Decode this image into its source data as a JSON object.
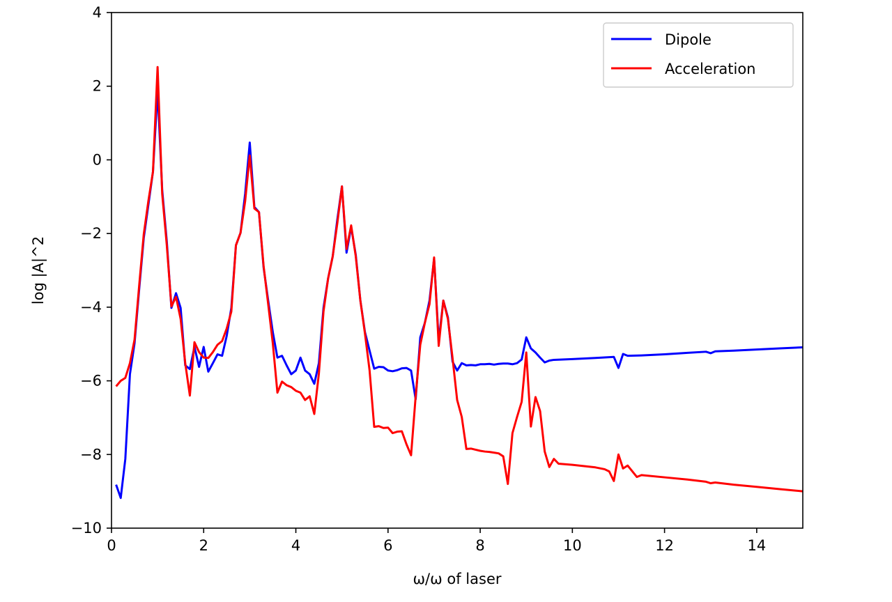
{
  "chart_data": {
    "type": "line",
    "title": "",
    "xlabel": "ω/ω of laser",
    "ylabel": "log |A|^2",
    "xlim": [
      0,
      15
    ],
    "ylim": [
      -10,
      4
    ],
    "xticks": [
      0,
      2,
      4,
      6,
      8,
      10,
      12,
      14
    ],
    "yticks": [
      -10,
      -8,
      -6,
      -4,
      -2,
      0,
      2,
      4
    ],
    "grid": false,
    "legend_position": "top-right",
    "series": [
      {
        "name": "Dipole",
        "color": "#0000ff",
        "points": [
          [
            0.1,
            -8.82
          ],
          [
            0.2,
            -9.18
          ],
          [
            0.3,
            -8.12
          ],
          [
            0.4,
            -5.82
          ],
          [
            0.5,
            -4.98
          ],
          [
            0.6,
            -3.52
          ],
          [
            0.7,
            -2.12
          ],
          [
            0.8,
            -1.22
          ],
          [
            0.9,
            -0.32
          ],
          [
            1.0,
            1.9
          ],
          [
            1.1,
            -0.82
          ],
          [
            1.2,
            -2.22
          ],
          [
            1.3,
            -4.02
          ],
          [
            1.4,
            -3.62
          ],
          [
            1.5,
            -4.02
          ],
          [
            1.6,
            -5.58
          ],
          [
            1.7,
            -5.68
          ],
          [
            1.8,
            -5.08
          ],
          [
            1.9,
            -5.62
          ],
          [
            2.0,
            -5.08
          ],
          [
            2.1,
            -5.75
          ],
          [
            2.2,
            -5.52
          ],
          [
            2.3,
            -5.28
          ],
          [
            2.4,
            -5.32
          ],
          [
            2.5,
            -4.78
          ],
          [
            2.6,
            -4.02
          ],
          [
            2.7,
            -2.32
          ],
          [
            2.8,
            -1.98
          ],
          [
            2.9,
            -0.92
          ],
          [
            3.0,
            0.47
          ],
          [
            3.1,
            -1.28
          ],
          [
            3.2,
            -1.42
          ],
          [
            3.3,
            -2.92
          ],
          [
            3.4,
            -3.82
          ],
          [
            3.5,
            -4.68
          ],
          [
            3.6,
            -5.37
          ],
          [
            3.7,
            -5.32
          ],
          [
            3.8,
            -5.58
          ],
          [
            3.9,
            -5.82
          ],
          [
            4.0,
            -5.72
          ],
          [
            4.1,
            -5.37
          ],
          [
            4.2,
            -5.72
          ],
          [
            4.3,
            -5.82
          ],
          [
            4.4,
            -6.08
          ],
          [
            4.5,
            -5.52
          ],
          [
            4.6,
            -4.02
          ],
          [
            4.7,
            -3.22
          ],
          [
            4.8,
            -2.62
          ],
          [
            4.9,
            -1.62
          ],
          [
            5.0,
            -0.72
          ],
          [
            5.1,
            -2.52
          ],
          [
            5.2,
            -1.82
          ],
          [
            5.3,
            -2.58
          ],
          [
            5.4,
            -3.82
          ],
          [
            5.5,
            -4.68
          ],
          [
            5.6,
            -5.18
          ],
          [
            5.7,
            -5.67
          ],
          [
            5.8,
            -5.62
          ],
          [
            5.9,
            -5.63
          ],
          [
            6.0,
            -5.72
          ],
          [
            6.1,
            -5.74
          ],
          [
            6.2,
            -5.71
          ],
          [
            6.3,
            -5.66
          ],
          [
            6.4,
            -5.65
          ],
          [
            6.5,
            -5.72
          ],
          [
            6.6,
            -6.5
          ],
          [
            6.7,
            -4.82
          ],
          [
            6.8,
            -4.42
          ],
          [
            6.9,
            -3.82
          ],
          [
            7.0,
            -2.68
          ],
          [
            7.1,
            -4.92
          ],
          [
            7.2,
            -3.82
          ],
          [
            7.3,
            -4.28
          ],
          [
            7.4,
            -5.48
          ],
          [
            7.5,
            -5.72
          ],
          [
            7.6,
            -5.52
          ],
          [
            7.7,
            -5.58
          ],
          [
            7.8,
            -5.57
          ],
          [
            7.9,
            -5.58
          ],
          [
            8.0,
            -5.55
          ],
          [
            8.1,
            -5.55
          ],
          [
            8.2,
            -5.54
          ],
          [
            8.3,
            -5.56
          ],
          [
            8.4,
            -5.54
          ],
          [
            8.5,
            -5.53
          ],
          [
            8.6,
            -5.53
          ],
          [
            8.7,
            -5.55
          ],
          [
            8.8,
            -5.52
          ],
          [
            8.9,
            -5.42
          ],
          [
            9.0,
            -4.82
          ],
          [
            9.1,
            -5.12
          ],
          [
            9.2,
            -5.23
          ],
          [
            9.3,
            -5.37
          ],
          [
            9.4,
            -5.5
          ],
          [
            9.5,
            -5.45
          ],
          [
            9.6,
            -5.43
          ],
          [
            10.0,
            -5.41
          ],
          [
            10.5,
            -5.38
          ],
          [
            10.9,
            -5.35
          ],
          [
            11.0,
            -5.65
          ],
          [
            11.1,
            -5.27
          ],
          [
            11.2,
            -5.32
          ],
          [
            11.5,
            -5.31
          ],
          [
            12.0,
            -5.28
          ],
          [
            12.5,
            -5.24
          ],
          [
            12.9,
            -5.21
          ],
          [
            13.0,
            -5.25
          ],
          [
            13.1,
            -5.2
          ],
          [
            13.5,
            -5.18
          ],
          [
            14.0,
            -5.15
          ],
          [
            14.5,
            -5.12
          ],
          [
            15.0,
            -5.09
          ]
        ]
      },
      {
        "name": "Acceleration",
        "color": "#ff0000",
        "points": [
          [
            0.1,
            -6.15
          ],
          [
            0.2,
            -6.0
          ],
          [
            0.3,
            -5.92
          ],
          [
            0.4,
            -5.52
          ],
          [
            0.5,
            -4.88
          ],
          [
            0.6,
            -3.42
          ],
          [
            0.7,
            -2.02
          ],
          [
            0.8,
            -1.12
          ],
          [
            0.9,
            -0.32
          ],
          [
            1.0,
            2.52
          ],
          [
            1.1,
            -0.92
          ],
          [
            1.2,
            -2.32
          ],
          [
            1.3,
            -3.98
          ],
          [
            1.4,
            -3.72
          ],
          [
            1.5,
            -4.32
          ],
          [
            1.6,
            -5.52
          ],
          [
            1.7,
            -6.4
          ],
          [
            1.8,
            -4.95
          ],
          [
            1.9,
            -5.22
          ],
          [
            2.0,
            -5.37
          ],
          [
            2.1,
            -5.38
          ],
          [
            2.2,
            -5.22
          ],
          [
            2.3,
            -5.02
          ],
          [
            2.4,
            -4.92
          ],
          [
            2.5,
            -4.58
          ],
          [
            2.6,
            -4.12
          ],
          [
            2.7,
            -2.32
          ],
          [
            2.8,
            -1.98
          ],
          [
            2.9,
            -1.12
          ],
          [
            3.0,
            0.12
          ],
          [
            3.1,
            -1.32
          ],
          [
            3.2,
            -1.42
          ],
          [
            3.3,
            -2.88
          ],
          [
            3.4,
            -3.92
          ],
          [
            3.5,
            -4.98
          ],
          [
            3.6,
            -6.32
          ],
          [
            3.7,
            -6.02
          ],
          [
            3.8,
            -6.12
          ],
          [
            3.9,
            -6.17
          ],
          [
            4.0,
            -6.27
          ],
          [
            4.1,
            -6.32
          ],
          [
            4.2,
            -6.52
          ],
          [
            4.3,
            -6.42
          ],
          [
            4.4,
            -6.9
          ],
          [
            4.5,
            -5.8
          ],
          [
            4.6,
            -4.12
          ],
          [
            4.7,
            -3.22
          ],
          [
            4.8,
            -2.62
          ],
          [
            4.9,
            -1.72
          ],
          [
            5.0,
            -0.72
          ],
          [
            5.1,
            -2.42
          ],
          [
            5.2,
            -1.78
          ],
          [
            5.3,
            -2.62
          ],
          [
            5.4,
            -3.82
          ],
          [
            5.5,
            -4.72
          ],
          [
            5.6,
            -5.72
          ],
          [
            5.7,
            -7.25
          ],
          [
            5.8,
            -7.23
          ],
          [
            5.9,
            -7.28
          ],
          [
            6.0,
            -7.27
          ],
          [
            6.1,
            -7.42
          ],
          [
            6.2,
            -7.38
          ],
          [
            6.3,
            -7.37
          ],
          [
            6.4,
            -7.72
          ],
          [
            6.5,
            -8.02
          ],
          [
            6.6,
            -6.42
          ],
          [
            6.7,
            -5.02
          ],
          [
            6.8,
            -4.42
          ],
          [
            6.9,
            -3.92
          ],
          [
            7.0,
            -2.65
          ],
          [
            7.1,
            -5.05
          ],
          [
            7.2,
            -3.82
          ],
          [
            7.3,
            -4.32
          ],
          [
            7.4,
            -5.38
          ],
          [
            7.5,
            -6.52
          ],
          [
            7.6,
            -6.98
          ],
          [
            7.7,
            -7.85
          ],
          [
            7.8,
            -7.84
          ],
          [
            7.9,
            -7.87
          ],
          [
            8.0,
            -7.9
          ],
          [
            8.1,
            -7.92
          ],
          [
            8.2,
            -7.93
          ],
          [
            8.3,
            -7.95
          ],
          [
            8.4,
            -7.97
          ],
          [
            8.5,
            -8.05
          ],
          [
            8.6,
            -8.8
          ],
          [
            8.7,
            -7.42
          ],
          [
            8.8,
            -6.98
          ],
          [
            8.9,
            -6.57
          ],
          [
            9.0,
            -5.23
          ],
          [
            9.1,
            -7.24
          ],
          [
            9.2,
            -6.44
          ],
          [
            9.3,
            -6.82
          ],
          [
            9.4,
            -7.92
          ],
          [
            9.5,
            -8.34
          ],
          [
            9.6,
            -8.12
          ],
          [
            9.7,
            -8.25
          ],
          [
            10.0,
            -8.28
          ],
          [
            10.5,
            -8.35
          ],
          [
            10.7,
            -8.4
          ],
          [
            10.8,
            -8.46
          ],
          [
            10.9,
            -8.72
          ],
          [
            11.0,
            -8.0
          ],
          [
            11.1,
            -8.38
          ],
          [
            11.2,
            -8.3
          ],
          [
            11.4,
            -8.61
          ],
          [
            11.5,
            -8.56
          ],
          [
            12.0,
            -8.62
          ],
          [
            12.5,
            -8.68
          ],
          [
            12.9,
            -8.74
          ],
          [
            13.0,
            -8.78
          ],
          [
            13.1,
            -8.76
          ],
          [
            13.5,
            -8.82
          ],
          [
            14.0,
            -8.88
          ],
          [
            14.5,
            -8.94
          ],
          [
            15.0,
            -9.0
          ]
        ]
      }
    ]
  }
}
